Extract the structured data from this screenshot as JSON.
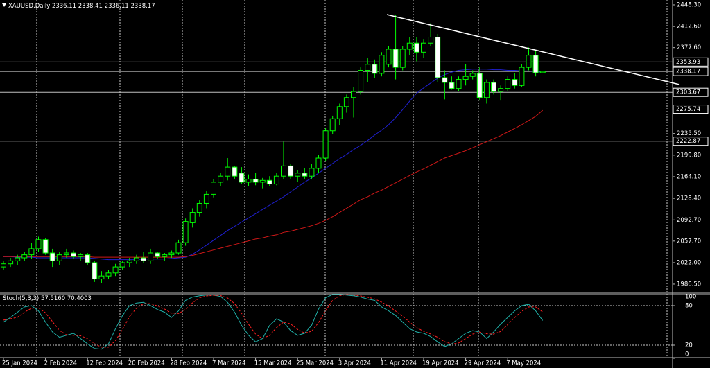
{
  "chart_data": {
    "type": "candlestick",
    "symbol": "XAUUSD,Daily",
    "categories": [
      "25 Jan 2024",
      null,
      null,
      null,
      null,
      null,
      "2 Feb 2024",
      null,
      null,
      null,
      null,
      null,
      "12 Feb 2024",
      null,
      null,
      null,
      null,
      null,
      "20 Feb 2024",
      null,
      null,
      null,
      null,
      null,
      "28 Feb 2024",
      null,
      null,
      null,
      null,
      null,
      "7 Mar 2024",
      null,
      null,
      null,
      null,
      null,
      "15 Mar 2024",
      null,
      null,
      null,
      null,
      null,
      "25 Mar 2024",
      null,
      null,
      null,
      null,
      null,
      "3 Apr 2024",
      null,
      null,
      null,
      null,
      null,
      "11 Apr 2024",
      null,
      null,
      null,
      null,
      null,
      "19 Apr 2024",
      null,
      null,
      null,
      null,
      null,
      "29 Apr 2024",
      null,
      null,
      null,
      null,
      null,
      "7 May 2024",
      null,
      null,
      null,
      null,
      null
    ],
    "open": [
      2015,
      2020,
      2025,
      2030,
      2035,
      2045,
      2060,
      2038,
      2025,
      2035,
      2038,
      2032,
      2035,
      2022,
      1995,
      2000,
      2005,
      2015,
      2022,
      2025,
      2030,
      2025,
      2038,
      2032,
      2035,
      2038,
      2055,
      2088,
      2105,
      2120,
      2135,
      2155,
      2165,
      2180,
      2170,
      2155,
      2160,
      2155,
      2158,
      2152,
      2165,
      2182,
      2165,
      2170,
      2165,
      2178,
      2195,
      2240,
      2260,
      2280,
      2295,
      2305,
      2340,
      2350,
      2335,
      2350,
      2375,
      2345,
      2375,
      2385,
      2370,
      2385,
      2395,
      2328,
      2320,
      2310,
      2325,
      2330,
      2335,
      2295,
      2320,
      2305,
      2310,
      2325,
      2315,
      2345,
      2365,
      2336.11
    ],
    "high": [
      2025,
      2030,
      2035,
      2040,
      2055,
      2065,
      2062,
      2045,
      2040,
      2045,
      2042,
      2038,
      2038,
      2025,
      2008,
      2010,
      2020,
      2025,
      2030,
      2035,
      2040,
      2045,
      2040,
      2038,
      2042,
      2060,
      2095,
      2112,
      2125,
      2140,
      2160,
      2170,
      2195,
      2182,
      2180,
      2168,
      2170,
      2162,
      2165,
      2170,
      2222,
      2185,
      2175,
      2178,
      2185,
      2200,
      2245,
      2265,
      2285,
      2300,
      2312,
      2345,
      2360,
      2358,
      2370,
      2380,
      2432,
      2380,
      2395,
      2395,
      2392,
      2418,
      2400,
      2340,
      2330,
      2330,
      2350,
      2340,
      2345,
      2325,
      2325,
      2315,
      2330,
      2335,
      2350,
      2378,
      2372,
      2338.41
    ],
    "low": [
      2010,
      2015,
      2018,
      2025,
      2028,
      2040,
      2035,
      2015,
      2018,
      2030,
      2028,
      2025,
      2018,
      1990,
      1988,
      1995,
      2000,
      2010,
      2015,
      2020,
      2022,
      2020,
      2028,
      2025,
      2030,
      2035,
      2050,
      2080,
      2098,
      2112,
      2130,
      2148,
      2158,
      2160,
      2152,
      2148,
      2150,
      2145,
      2148,
      2150,
      2160,
      2160,
      2155,
      2160,
      2160,
      2170,
      2190,
      2235,
      2250,
      2270,
      2262,
      2300,
      2320,
      2328,
      2330,
      2345,
      2325,
      2340,
      2365,
      2355,
      2360,
      2380,
      2320,
      2292,
      2308,
      2305,
      2315,
      2325,
      2290,
      2285,
      2300,
      2290,
      2305,
      2310,
      2312,
      2340,
      2330,
      2336.11
    ],
    "close": [
      2020,
      2025,
      2030,
      2035,
      2045,
      2060,
      2038,
      2025,
      2035,
      2038,
      2032,
      2035,
      2022,
      1995,
      2000,
      2005,
      2015,
      2022,
      2025,
      2030,
      2025,
      2038,
      2032,
      2035,
      2038,
      2055,
      2090,
      2105,
      2120,
      2135,
      2155,
      2165,
      2180,
      2165,
      2155,
      2160,
      2155,
      2158,
      2152,
      2165,
      2182,
      2165,
      2170,
      2165,
      2178,
      2195,
      2240,
      2260,
      2280,
      2295,
      2305,
      2340,
      2350,
      2335,
      2365,
      2375,
      2345,
      2375,
      2385,
      2370,
      2385,
      2395,
      2328,
      2320,
      2310,
      2325,
      2330,
      2335,
      2295,
      2320,
      2305,
      2310,
      2325,
      2315,
      2345,
      2365,
      2336,
      2338.17
    ],
    "colors": {
      "up_outline": "#00ff00",
      "up_fill": "#000000",
      "down_fill": "#ffffff",
      "wick": "#00ff00"
    },
    "moving_averages": [
      {
        "color": "#1f1fd0",
        "values": [
          2032,
          2032,
          2031,
          2031,
          2031,
          2030,
          2030,
          2030,
          2030,
          2030,
          2030,
          2030,
          2030,
          2029,
          2028,
          2027,
          2027,
          2027,
          2027,
          2027,
          2028,
          2028,
          2028,
          2028,
          2029,
          2030,
          2031,
          2036,
          2043,
          2051,
          2059,
          2067,
          2075,
          2082,
          2089,
          2096,
          2103,
          2110,
          2117,
          2124,
          2131,
          2139,
          2147,
          2155,
          2162,
          2170,
          2178,
          2186,
          2194,
          2201,
          2209,
          2216,
          2224,
          2233,
          2241,
          2250,
          2262,
          2275,
          2289,
          2302,
          2311,
          2319,
          2327,
          2333,
          2337,
          2340,
          2341,
          2342,
          2342,
          2342,
          2341,
          2341,
          2340,
          2340,
          2339,
          2339,
          2338,
          2337
        ]
      },
      {
        "color": "#d01818",
        "values": [
          2032,
          2032,
          2032,
          2032,
          2032,
          2032,
          2032,
          2032,
          2032,
          2032,
          2032,
          2032,
          2032,
          2031,
          2031,
          2031,
          2031,
          2031,
          2031,
          2031,
          2031,
          2031,
          2031,
          2031,
          2031,
          2031,
          2032,
          2034,
          2037,
          2040,
          2043,
          2046,
          2049,
          2052,
          2055,
          2058,
          2061,
          2063,
          2066,
          2068,
          2072,
          2074,
          2077,
          2080,
          2083,
          2087,
          2092,
          2098,
          2105,
          2112,
          2119,
          2126,
          2131,
          2137,
          2142,
          2148,
          2154,
          2160,
          2166,
          2172,
          2177,
          2183,
          2189,
          2195,
          2199,
          2203,
          2207,
          2212,
          2217,
          2222,
          2227,
          2232,
          2238,
          2244,
          2250,
          2257,
          2264,
          2274
        ]
      }
    ],
    "levels": [
      2353.93,
      2338.17,
      2303.67,
      2275.74,
      2222.87
    ],
    "ylim": [
      1972.7,
      2456.3
    ],
    "yticks": [
      {
        "value": 2448.3,
        "label": "2448.30"
      },
      {
        "value": 2412.6,
        "label": "2412.60"
      },
      {
        "value": 2377.6,
        "label": "2377.60"
      },
      {
        "value": 2235.5,
        "label": "2235.50"
      },
      {
        "value": 2199.8,
        "label": "2199.80"
      },
      {
        "value": 2164.1,
        "label": "2164.10"
      },
      {
        "value": 2128.4,
        "label": "2128.40"
      },
      {
        "value": 2092.7,
        "label": "2092.70"
      },
      {
        "value": 2057.7,
        "label": "2057.70"
      },
      {
        "value": 2022,
        "label": "2022.00"
      },
      {
        "value": 1986.5,
        "label": "1986.50"
      }
    ],
    "grid": true,
    "stochastic": {
      "name": "Stoch(5,3,3)",
      "ylim": [
        0,
        100
      ],
      "yticks": [
        0,
        20,
        80,
        100
      ],
      "levels": [
        20,
        80
      ],
      "main": {
        "color": "#20b2aa",
        "value_label": "57.5160",
        "values": [
          55,
          62,
          70,
          78,
          80,
          72,
          55,
          40,
          32,
          35,
          38,
          30,
          22,
          15,
          14,
          22,
          45,
          65,
          80,
          84,
          85,
          80,
          74,
          70,
          62,
          72,
          88,
          93,
          95,
          96,
          96,
          94,
          85,
          70,
          50,
          35,
          25,
          30,
          50,
          60,
          55,
          42,
          35,
          38,
          50,
          75,
          92,
          97,
          97,
          96,
          95,
          93,
          90,
          88,
          78,
          72,
          65,
          55,
          45,
          40,
          38,
          33,
          25,
          18,
          22,
          30,
          38,
          42,
          40,
          30,
          40,
          52,
          62,
          72,
          80,
          82,
          72,
          57.516
        ]
      },
      "signal": {
        "color": "#ff2020",
        "values": [
          58,
          60,
          62.3,
          70,
          76,
          76.7,
          69,
          55.7,
          42.3,
          35.7,
          35,
          34.3,
          30,
          22.3,
          17,
          17,
          27,
          44,
          63.3,
          76.3,
          83,
          83,
          79.7,
          74.7,
          68.7,
          68,
          74,
          84.3,
          92,
          94.7,
          95.7,
          95.3,
          91.7,
          83,
          68.3,
          51.7,
          36.7,
          30,
          35,
          46.7,
          55,
          52.3,
          44,
          38.3,
          41,
          54.3,
          72.3,
          88,
          95.3,
          96.7,
          96,
          94.7,
          92.7,
          90.3,
          85.3,
          79.3,
          71.7,
          64,
          55,
          46.7,
          41,
          37,
          32,
          25.3,
          21.7,
          23.3,
          30,
          36.7,
          40,
          37.3,
          36.7,
          40.7,
          51.3,
          62,
          71.3,
          78,
          78,
          70.4003
        ]
      }
    }
  }
}
